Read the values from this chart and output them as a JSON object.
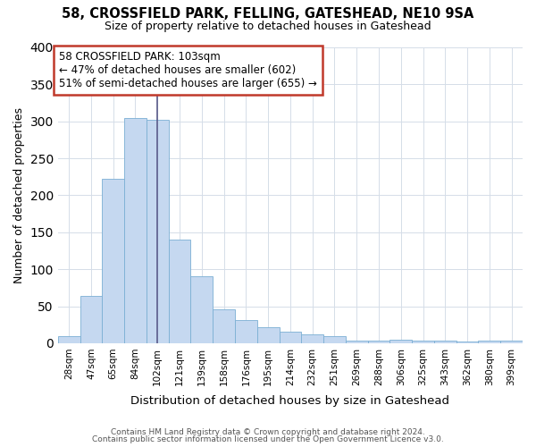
{
  "title1": "58, CROSSFIELD PARK, FELLING, GATESHEAD, NE10 9SA",
  "title2": "Size of property relative to detached houses in Gateshead",
  "xlabel": "Distribution of detached houses by size in Gateshead",
  "ylabel": "Number of detached properties",
  "categories": [
    "28sqm",
    "47sqm",
    "65sqm",
    "84sqm",
    "102sqm",
    "121sqm",
    "139sqm",
    "158sqm",
    "176sqm",
    "195sqm",
    "214sqm",
    "232sqm",
    "251sqm",
    "269sqm",
    "288sqm",
    "306sqm",
    "325sqm",
    "343sqm",
    "362sqm",
    "380sqm",
    "399sqm"
  ],
  "values": [
    10,
    64,
    222,
    305,
    302,
    140,
    90,
    46,
    31,
    22,
    15,
    12,
    10,
    4,
    4,
    5,
    3,
    3,
    2,
    3,
    4
  ],
  "bar_color": "#c5d8f0",
  "bar_edge_color": "#7bafd4",
  "subject_line_color": "#5a5a8a",
  "subject_bar_index": 4,
  "annotation_text": "58 CROSSFIELD PARK: 103sqm\n← 47% of detached houses are smaller (602)\n51% of semi-detached houses are larger (655) →",
  "annotation_box_color": "#c0392b",
  "footer1": "Contains HM Land Registry data © Crown copyright and database right 2024.",
  "footer2": "Contains public sector information licensed under the Open Government Licence v3.0.",
  "ylim": [
    0,
    400
  ],
  "figsize": [
    6.0,
    5.0
  ],
  "dpi": 100
}
